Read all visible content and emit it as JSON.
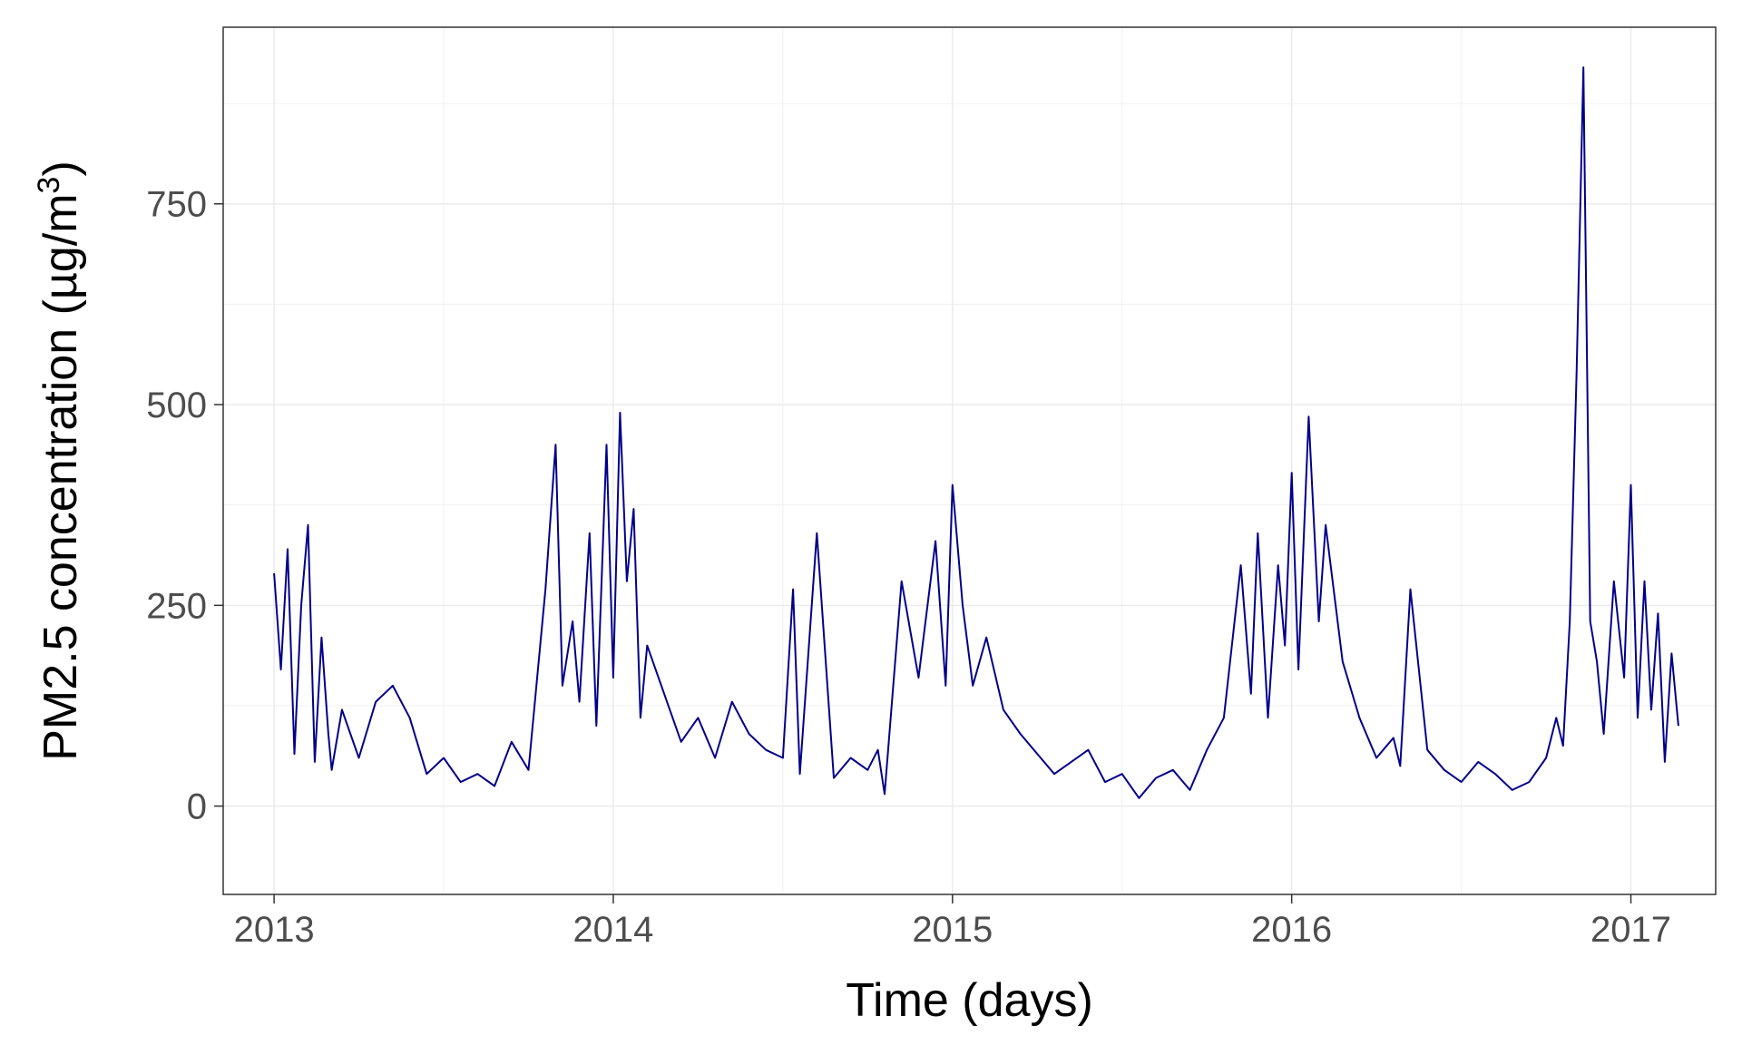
{
  "chart_data": {
    "type": "line",
    "title": "",
    "xlabel": "Time (days)",
    "ylabel_main": "PM2.5 concentration (µg/m",
    "ylabel_sup": "3",
    "ylabel_end": ")",
    "x_unit": "year",
    "xlim": [
      2012.85,
      2017.25
    ],
    "ylim": [
      -110,
      970
    ],
    "x_ticks": [
      2013,
      2014,
      2015,
      2016,
      2017
    ],
    "x_tick_labels": [
      "2013",
      "2014",
      "2015",
      "2016",
      "2017"
    ],
    "y_ticks": [
      0,
      250,
      500,
      750
    ],
    "y_tick_labels": [
      "0",
      "250",
      "500",
      "750"
    ],
    "grid": true,
    "legend": "none",
    "line_color": "#00008B",
    "series": [
      {
        "x": [
          2013.0,
          2013.02,
          2013.04,
          2013.06,
          2013.08,
          2013.1,
          2013.12,
          2013.14,
          2013.16,
          2013.17,
          2013.2,
          2013.25,
          2013.3,
          2013.35,
          2013.4,
          2013.45,
          2013.5,
          2013.55,
          2013.6,
          2013.65,
          2013.7,
          2013.75,
          2013.8,
          2013.83,
          2013.85,
          2013.88,
          2013.9,
          2013.93,
          2013.95,
          2013.98,
          2014.0,
          2014.02,
          2014.04,
          2014.06,
          2014.08,
          2014.1,
          2014.15,
          2014.2,
          2014.25,
          2014.3,
          2014.35,
          2014.4,
          2014.45,
          2014.5,
          2014.53,
          2014.55,
          2014.6,
          2014.65,
          2014.7,
          2014.75,
          2014.78,
          2014.8,
          2014.85,
          2014.9,
          2014.95,
          2014.98,
          2015.0,
          2015.03,
          2015.06,
          2015.1,
          2015.15,
          2015.2,
          2015.25,
          2015.3,
          2015.35,
          2015.4,
          2015.45,
          2015.5,
          2015.55,
          2015.6,
          2015.65,
          2015.7,
          2015.75,
          2015.8,
          2015.85,
          2015.88,
          2015.9,
          2015.93,
          2015.96,
          2015.98,
          2016.0,
          2016.02,
          2016.05,
          2016.08,
          2016.1,
          2016.15,
          2016.2,
          2016.25,
          2016.3,
          2016.32,
          2016.35,
          2016.4,
          2016.45,
          2016.5,
          2016.55,
          2016.6,
          2016.65,
          2016.7,
          2016.75,
          2016.78,
          2016.8,
          2016.82,
          2016.84,
          2016.86,
          2016.88,
          2016.9,
          2016.92,
          2016.95,
          2016.98,
          2017.0,
          2017.02,
          2017.04,
          2017.06,
          2017.08,
          2017.1,
          2017.12,
          2017.14
        ],
        "y": [
          290,
          170,
          320,
          65,
          250,
          350,
          55,
          210,
          90,
          45,
          120,
          60,
          130,
          150,
          110,
          40,
          60,
          30,
          40,
          25,
          80,
          45,
          270,
          450,
          150,
          230,
          130,
          340,
          100,
          450,
          160,
          490,
          280,
          370,
          110,
          200,
          140,
          80,
          110,
          60,
          130,
          90,
          70,
          60,
          270,
          40,
          340,
          35,
          60,
          45,
          70,
          15,
          280,
          160,
          330,
          150,
          400,
          250,
          150,
          210,
          120,
          90,
          65,
          40,
          55,
          70,
          30,
          40,
          10,
          35,
          45,
          20,
          70,
          110,
          300,
          140,
          340,
          110,
          300,
          200,
          415,
          170,
          485,
          230,
          350,
          180,
          110,
          60,
          85,
          50,
          270,
          70,
          45,
          30,
          55,
          40,
          20,
          30,
          60,
          110,
          75,
          230,
          540,
          920,
          230,
          180,
          90,
          280,
          160,
          400,
          110,
          280,
          120,
          240,
          55,
          190,
          100
        ]
      }
    ]
  }
}
